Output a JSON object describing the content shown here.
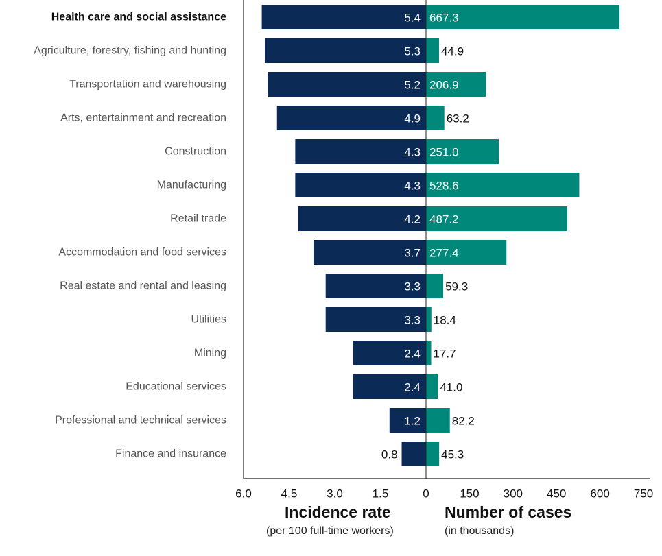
{
  "chart_data": {
    "type": "bar",
    "orientation": "horizontal-butterfly",
    "categories": [
      "Health care and social assistance",
      "Agriculture, forestry, fishing and hunting",
      "Transportation and warehousing",
      "Arts, entertainment and recreation",
      "Construction",
      "Manufacturing",
      "Retail trade",
      "Accommodation and food services",
      "Real estate and rental and leasing",
      "Utilities",
      "Mining",
      "Educational services",
      "Professional and technical services",
      "Finance and insurance"
    ],
    "highlighted_category": "Health care and social assistance",
    "series": [
      {
        "name": "Incidence rate",
        "subtitle": "(per 100 full-time workers)",
        "color": "#0b2a55",
        "axis_ticks": [
          "6.0",
          "4.5",
          "3.0",
          "1.5",
          "0"
        ],
        "xlim": [
          0,
          6.0
        ],
        "values": [
          5.4,
          5.3,
          5.2,
          4.9,
          4.3,
          4.3,
          4.2,
          3.7,
          3.3,
          3.3,
          2.4,
          2.4,
          1.2,
          0.8
        ],
        "labels": [
          "5.4",
          "5.3",
          "5.2",
          "4.9",
          "4.3",
          "4.3",
          "4.2",
          "3.7",
          "3.3",
          "3.3",
          "2.4",
          "2.4",
          "1.2",
          "0.8"
        ]
      },
      {
        "name": "Number of cases",
        "subtitle": "(in thousands)",
        "color": "#00897a",
        "axis_ticks": [
          "150",
          "300",
          "450",
          "600",
          "750"
        ],
        "xlim": [
          0,
          750
        ],
        "values": [
          667.3,
          44.9,
          206.9,
          63.2,
          251.0,
          528.6,
          487.2,
          277.4,
          59.3,
          18.4,
          17.7,
          41.0,
          82.2,
          45.3
        ],
        "labels": [
          "667.3",
          "44.9",
          "206.9",
          "63.2",
          "251.0",
          "528.6",
          "487.2",
          "277.4",
          "59.3",
          "18.4",
          "17.7",
          "41.0",
          "82.2",
          "45.3"
        ]
      }
    ],
    "grid": false,
    "legend": "none"
  }
}
